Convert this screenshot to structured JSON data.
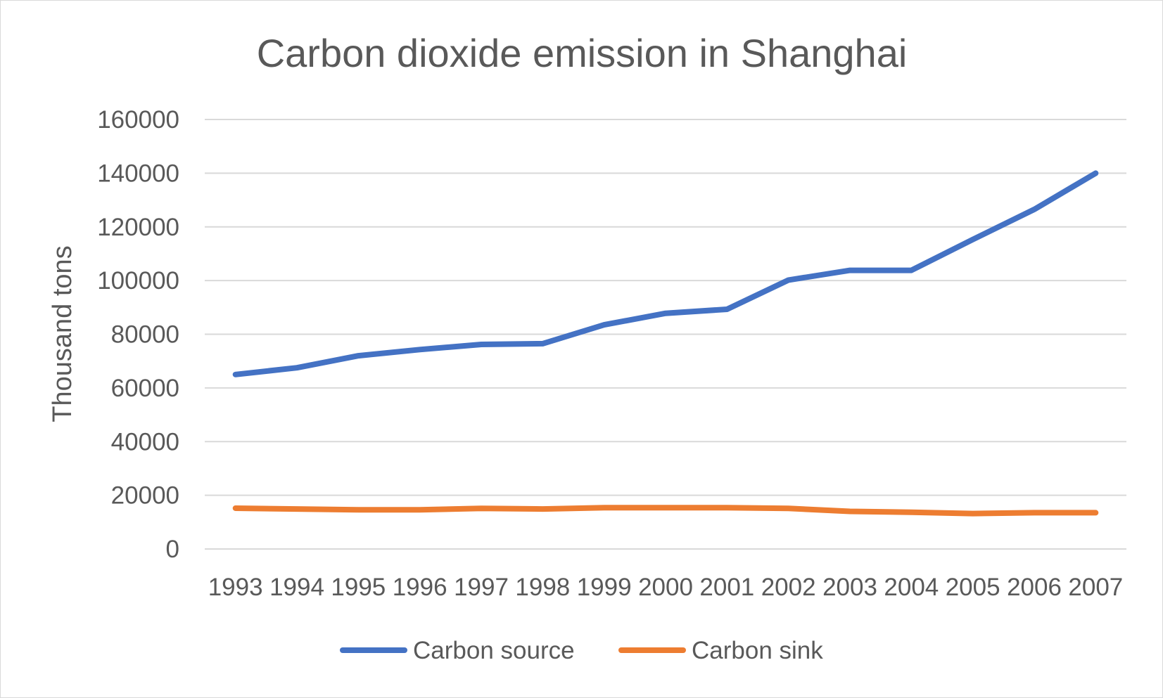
{
  "chart_data": {
    "type": "line",
    "title": "Carbon dioxide emission in Shanghai",
    "xlabel": "",
    "ylabel": "Thousand tons",
    "categories": [
      "1993",
      "1994",
      "1995",
      "1996",
      "1997",
      "1998",
      "1999",
      "2000",
      "2001",
      "2002",
      "2003",
      "2004",
      "2005",
      "2006",
      "2007"
    ],
    "yticks": [
      "0",
      "20000",
      "40000",
      "60000",
      "80000",
      "100000",
      "120000",
      "140000",
      "160000"
    ],
    "ylim": [
      0,
      160000
    ],
    "grid": true,
    "legend_position": "bottom",
    "series": [
      {
        "name": "Carbon source",
        "color": "#4472C4",
        "values": [
          65000,
          67500,
          72000,
          74300,
          76200,
          76500,
          83500,
          87800,
          89300,
          100200,
          103800,
          103800,
          115300,
          126500,
          140000
        ]
      },
      {
        "name": "Carbon sink",
        "color": "#ED7D31",
        "values": [
          15200,
          14900,
          14600,
          14600,
          15100,
          14900,
          15400,
          15400,
          15400,
          15100,
          14000,
          13700,
          13200,
          13500,
          13500
        ]
      }
    ]
  }
}
